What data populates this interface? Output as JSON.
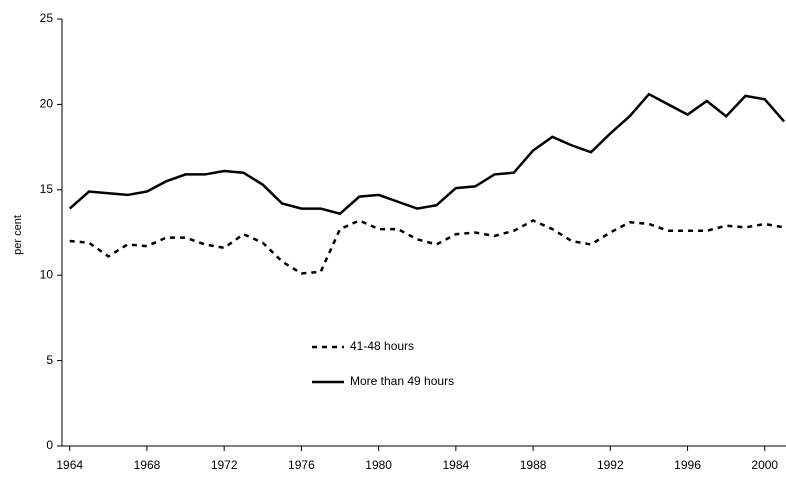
{
  "chart_data": {
    "type": "line",
    "ylabel": "per cent",
    "x": [
      1964,
      1965,
      1966,
      1967,
      1968,
      1969,
      1970,
      1971,
      1972,
      1973,
      1974,
      1975,
      1976,
      1977,
      1978,
      1979,
      1980,
      1981,
      1982,
      1983,
      1984,
      1985,
      1986,
      1987,
      1988,
      1989,
      1990,
      1991,
      1992,
      1993,
      1994,
      1995,
      1996,
      1997,
      1998,
      1999,
      2000,
      2001
    ],
    "series": [
      {
        "name": "41-48 hours",
        "color": "#000000",
        "dashed": true,
        "values": [
          12.0,
          11.9,
          11.1,
          11.8,
          11.7,
          12.2,
          12.2,
          11.8,
          11.6,
          12.4,
          11.9,
          10.8,
          10.1,
          10.2,
          12.7,
          13.2,
          12.7,
          12.7,
          12.1,
          11.8,
          12.4,
          12.5,
          12.3,
          12.6,
          13.2,
          12.7,
          12.0,
          11.8,
          12.5,
          13.1,
          13.0,
          12.6,
          12.6,
          12.6,
          12.9,
          12.8,
          13.0,
          12.8
        ]
      },
      {
        "name": "More than 49 hours",
        "color": "#000000",
        "dashed": false,
        "values": [
          13.9,
          14.9,
          14.8,
          14.7,
          14.9,
          15.5,
          15.9,
          15.9,
          16.1,
          16.0,
          15.3,
          14.2,
          13.9,
          13.9,
          13.6,
          14.6,
          14.7,
          14.3,
          13.9,
          14.1,
          15.1,
          15.2,
          15.9,
          16.0,
          17.3,
          18.1,
          17.6,
          17.2,
          18.3,
          19.3,
          20.6,
          20.0,
          19.4,
          20.2,
          19.3,
          20.5,
          20.3,
          19.0
        ]
      }
    ],
    "xlim": [
      1963.6,
      2001.1
    ],
    "xticks": [
      1964,
      1968,
      1972,
      1976,
      1980,
      1984,
      1988,
      1992,
      1996,
      2000
    ],
    "ylim": [
      0,
      25
    ],
    "yticks": [
      0,
      5,
      10,
      15,
      20,
      25
    ],
    "grid": false,
    "legend": "center"
  }
}
